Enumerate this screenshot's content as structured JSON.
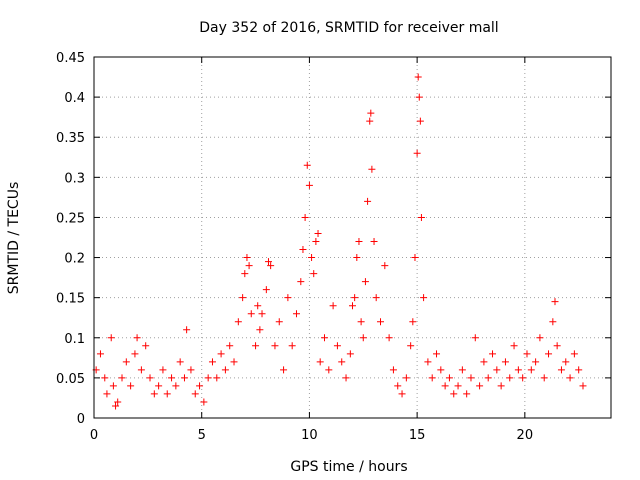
{
  "chart_data": {
    "type": "scatter",
    "title": "Day 352 of 2016, SRMTID for receiver mall",
    "xlabel": "GPS time / hours",
    "ylabel": "SRMTID / TECUs",
    "xlim": [
      0,
      24
    ],
    "ylim": [
      0,
      0.45
    ],
    "xticks": [
      0,
      5,
      10,
      15,
      20
    ],
    "yticks": [
      0,
      0.05,
      0.1,
      0.15,
      0.2,
      0.25,
      0.3,
      0.35,
      0.4,
      0.45
    ],
    "xtick_labels": [
      "0",
      "5",
      "10",
      "15",
      "20"
    ],
    "ytick_labels": [
      "0",
      "0.05",
      "0.1",
      "0.15",
      "0.2",
      "0.25",
      "0.3",
      "0.35",
      "0.4",
      "0.45"
    ],
    "grid": true,
    "marker": "+",
    "marker_color": "#ff0000",
    "points": [
      [
        0.1,
        0.06
      ],
      [
        0.3,
        0.08
      ],
      [
        0.5,
        0.05
      ],
      [
        0.6,
        0.03
      ],
      [
        0.8,
        0.1
      ],
      [
        0.9,
        0.04
      ],
      [
        1.0,
        0.015
      ],
      [
        1.1,
        0.02
      ],
      [
        1.3,
        0.05
      ],
      [
        1.5,
        0.07
      ],
      [
        1.7,
        0.04
      ],
      [
        1.9,
        0.08
      ],
      [
        2.0,
        0.1
      ],
      [
        2.2,
        0.06
      ],
      [
        2.4,
        0.09
      ],
      [
        2.6,
        0.05
      ],
      [
        2.8,
        0.03
      ],
      [
        3.0,
        0.04
      ],
      [
        3.2,
        0.06
      ],
      [
        3.4,
        0.03
      ],
      [
        3.6,
        0.05
      ],
      [
        3.8,
        0.04
      ],
      [
        4.0,
        0.07
      ],
      [
        4.2,
        0.05
      ],
      [
        4.3,
        0.11
      ],
      [
        4.5,
        0.06
      ],
      [
        4.7,
        0.03
      ],
      [
        4.9,
        0.04
      ],
      [
        5.1,
        0.02
      ],
      [
        5.3,
        0.05
      ],
      [
        5.5,
        0.07
      ],
      [
        5.7,
        0.05
      ],
      [
        5.9,
        0.08
      ],
      [
        6.1,
        0.06
      ],
      [
        6.3,
        0.09
      ],
      [
        6.5,
        0.07
      ],
      [
        6.7,
        0.12
      ],
      [
        6.9,
        0.15
      ],
      [
        7.0,
        0.18
      ],
      [
        7.1,
        0.2
      ],
      [
        7.2,
        0.19
      ],
      [
        7.3,
        0.13
      ],
      [
        7.5,
        0.09
      ],
      [
        7.6,
        0.14
      ],
      [
        7.7,
        0.11
      ],
      [
        7.8,
        0.13
      ],
      [
        8.0,
        0.16
      ],
      [
        8.1,
        0.195
      ],
      [
        8.2,
        0.19
      ],
      [
        8.4,
        0.09
      ],
      [
        8.6,
        0.12
      ],
      [
        8.8,
        0.06
      ],
      [
        9.0,
        0.15
      ],
      [
        9.2,
        0.09
      ],
      [
        9.4,
        0.13
      ],
      [
        9.6,
        0.17
      ],
      [
        9.7,
        0.21
      ],
      [
        9.8,
        0.25
      ],
      [
        9.9,
        0.315
      ],
      [
        10.0,
        0.29
      ],
      [
        10.1,
        0.2
      ],
      [
        10.2,
        0.18
      ],
      [
        10.3,
        0.22
      ],
      [
        10.4,
        0.23
      ],
      [
        10.5,
        0.07
      ],
      [
        10.7,
        0.1
      ],
      [
        10.9,
        0.06
      ],
      [
        11.1,
        0.14
      ],
      [
        11.3,
        0.09
      ],
      [
        11.5,
        0.07
      ],
      [
        11.7,
        0.05
      ],
      [
        11.9,
        0.08
      ],
      [
        12.0,
        0.14
      ],
      [
        12.1,
        0.15
      ],
      [
        12.2,
        0.2
      ],
      [
        12.3,
        0.22
      ],
      [
        12.4,
        0.12
      ],
      [
        12.5,
        0.1
      ],
      [
        12.6,
        0.17
      ],
      [
        12.7,
        0.27
      ],
      [
        12.8,
        0.37
      ],
      [
        12.85,
        0.38
      ],
      [
        12.9,
        0.31
      ],
      [
        13.0,
        0.22
      ],
      [
        13.1,
        0.15
      ],
      [
        13.3,
        0.12
      ],
      [
        13.5,
        0.19
      ],
      [
        13.7,
        0.1
      ],
      [
        13.9,
        0.06
      ],
      [
        14.1,
        0.04
      ],
      [
        14.3,
        0.03
      ],
      [
        14.5,
        0.05
      ],
      [
        14.7,
        0.09
      ],
      [
        14.8,
        0.12
      ],
      [
        14.9,
        0.2
      ],
      [
        15.0,
        0.33
      ],
      [
        15.05,
        0.425
      ],
      [
        15.1,
        0.4
      ],
      [
        15.15,
        0.37
      ],
      [
        15.2,
        0.25
      ],
      [
        15.3,
        0.15
      ],
      [
        15.5,
        0.07
      ],
      [
        15.7,
        0.05
      ],
      [
        15.9,
        0.08
      ],
      [
        16.1,
        0.06
      ],
      [
        16.3,
        0.04
      ],
      [
        16.5,
        0.05
      ],
      [
        16.7,
        0.03
      ],
      [
        16.9,
        0.04
      ],
      [
        17.1,
        0.06
      ],
      [
        17.3,
        0.03
      ],
      [
        17.5,
        0.05
      ],
      [
        17.7,
        0.1
      ],
      [
        17.9,
        0.04
      ],
      [
        18.1,
        0.07
      ],
      [
        18.3,
        0.05
      ],
      [
        18.5,
        0.08
      ],
      [
        18.7,
        0.06
      ],
      [
        18.9,
        0.04
      ],
      [
        19.1,
        0.07
      ],
      [
        19.3,
        0.05
      ],
      [
        19.5,
        0.09
      ],
      [
        19.7,
        0.06
      ],
      [
        19.9,
        0.05
      ],
      [
        20.1,
        0.08
      ],
      [
        20.3,
        0.06
      ],
      [
        20.5,
        0.07
      ],
      [
        20.7,
        0.1
      ],
      [
        20.9,
        0.05
      ],
      [
        21.1,
        0.08
      ],
      [
        21.3,
        0.12
      ],
      [
        21.4,
        0.145
      ],
      [
        21.5,
        0.09
      ],
      [
        21.7,
        0.06
      ],
      [
        21.9,
        0.07
      ],
      [
        22.1,
        0.05
      ],
      [
        22.3,
        0.08
      ],
      [
        22.5,
        0.06
      ],
      [
        22.7,
        0.04
      ]
    ]
  }
}
